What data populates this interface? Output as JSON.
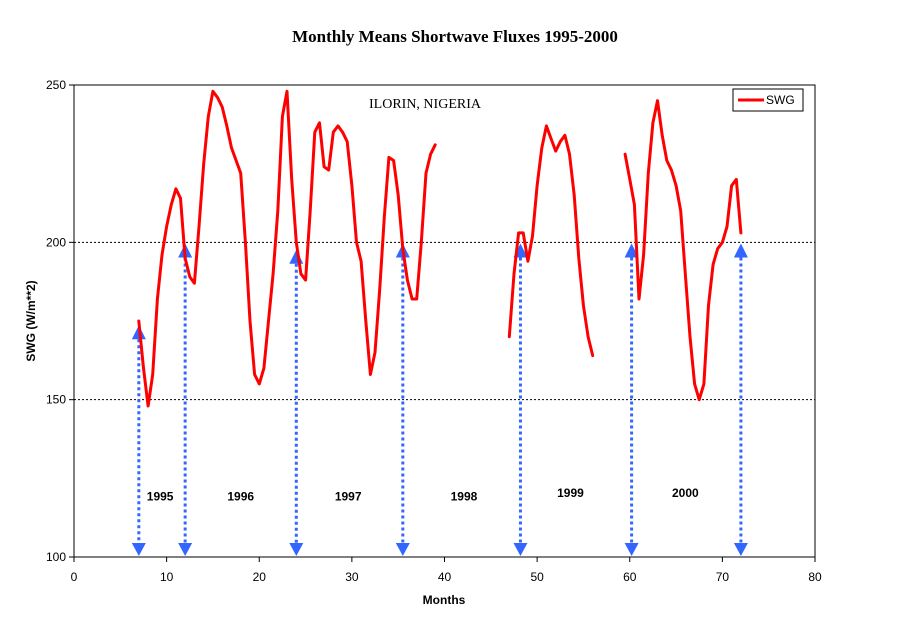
{
  "chart_data": {
    "type": "line",
    "title": "Monthly Means Shortwave Fluxes 1995-2000",
    "annotation": "ILORIN, NIGERIA",
    "xlabel": "Months",
    "ylabel": "SWG (W/m**2)",
    "xlim": [
      0,
      80
    ],
    "ylim": [
      100,
      250
    ],
    "xticks": [
      0,
      10,
      20,
      30,
      40,
      50,
      60,
      70,
      80
    ],
    "yticks": [
      100,
      150,
      200,
      250
    ],
    "gridlines_y": [
      150,
      200
    ],
    "legend": {
      "position": "top-right",
      "entries": [
        "SWG"
      ]
    },
    "colors": {
      "series": "#ff0000",
      "arrows": "#3366ff",
      "grid": "#000000"
    },
    "series": [
      {
        "name": "SWG",
        "segments": [
          [
            [
              7,
              175
            ],
            [
              7.5,
              160
            ],
            [
              8,
              148
            ],
            [
              8.5,
              158
            ],
            [
              9,
              182
            ],
            [
              9.5,
              196
            ],
            [
              10,
              205
            ],
            [
              10.5,
              212
            ],
            [
              11,
              217
            ],
            [
              11.5,
              214
            ],
            [
              12,
              195
            ],
            [
              12.5,
              189
            ],
            [
              13,
              187
            ],
            [
              13.5,
              205
            ],
            [
              14,
              225
            ],
            [
              14.5,
              240
            ],
            [
              15,
              248
            ],
            [
              15.5,
              246
            ],
            [
              16,
              243
            ],
            [
              16.5,
              237
            ],
            [
              17,
              230
            ],
            [
              17.5,
              226
            ],
            [
              18,
              222
            ],
            [
              18.5,
              200
            ],
            [
              19,
              175
            ],
            [
              19.5,
              158
            ],
            [
              20,
              155
            ],
            [
              20.5,
              160
            ],
            [
              21,
              175
            ],
            [
              21.5,
              190
            ],
            [
              22,
              210
            ],
            [
              22.5,
              240
            ],
            [
              23,
              248
            ],
            [
              23.5,
              220
            ],
            [
              24,
              200
            ],
            [
              24.5,
              190
            ],
            [
              25,
              188
            ],
            [
              25.5,
              210
            ],
            [
              26,
              235
            ],
            [
              26.5,
              238
            ],
            [
              27,
              224
            ],
            [
              27.5,
              223
            ],
            [
              28,
              235
            ],
            [
              28.5,
              237
            ],
            [
              29,
              235
            ],
            [
              29.5,
              232
            ],
            [
              30,
              218
            ],
            [
              30.5,
              200
            ],
            [
              31,
              194
            ],
            [
              31.5,
              175
            ],
            [
              32,
              158
            ],
            [
              32.5,
              165
            ],
            [
              33,
              185
            ],
            [
              33.5,
              208
            ],
            [
              34,
              227
            ],
            [
              34.5,
              226
            ],
            [
              35,
              215
            ],
            [
              35.5,
              198
            ],
            [
              36,
              188
            ],
            [
              36.5,
              182
            ],
            [
              37,
              182
            ],
            [
              37.5,
              200
            ],
            [
              38,
              222
            ],
            [
              38.5,
              228
            ],
            [
              39,
              231
            ]
          ],
          [
            [
              47,
              170
            ],
            [
              47.5,
              190
            ],
            [
              48,
              203
            ],
            [
              48.5,
              203
            ],
            [
              49,
              194
            ],
            [
              49.5,
              202
            ],
            [
              50,
              218
            ],
            [
              50.5,
              230
            ],
            [
              51,
              237
            ],
            [
              51.5,
              233
            ],
            [
              52,
              229
            ],
            [
              52.5,
              232
            ],
            [
              53,
              234
            ],
            [
              53.5,
              228
            ],
            [
              54,
              215
            ],
            [
              54.5,
              195
            ],
            [
              55,
              180
            ],
            [
              55.5,
              170
            ],
            [
              56,
              164
            ]
          ],
          [
            [
              59.5,
              228
            ],
            [
              60,
              220
            ],
            [
              60.5,
              212
            ],
            [
              61,
              182
            ],
            [
              61.5,
              196
            ],
            [
              62,
              222
            ],
            [
              62.5,
              238
            ],
            [
              63,
              245
            ],
            [
              63.5,
              234
            ],
            [
              64,
              226
            ],
            [
              64.5,
              223
            ],
            [
              65,
              218
            ],
            [
              65.5,
              210
            ],
            [
              66,
              190
            ],
            [
              66.5,
              170
            ],
            [
              67,
              155
            ],
            [
              67.5,
              150
            ],
            [
              68,
              155
            ],
            [
              68.5,
              180
            ],
            [
              69,
              193
            ],
            [
              69.5,
              198
            ],
            [
              70,
              200
            ],
            [
              70.5,
              205
            ],
            [
              71,
              218
            ],
            [
              71.5,
              220
            ],
            [
              72,
              203
            ]
          ]
        ]
      }
    ],
    "markers": [
      {
        "x": 7,
        "y_top": 173,
        "y_bottom": 100
      },
      {
        "x": 12,
        "y_top": 199,
        "y_bottom": 100
      },
      {
        "x": 24,
        "y_top": 197,
        "y_bottom": 100
      },
      {
        "x": 35.5,
        "y_top": 199,
        "y_bottom": 100
      },
      {
        "x": 48.2,
        "y_top": 199,
        "y_bottom": 100
      },
      {
        "x": 60.2,
        "y_top": 199,
        "y_bottom": 100
      },
      {
        "x": 72,
        "y_top": 199,
        "y_bottom": 100
      }
    ],
    "year_labels": [
      {
        "text": "1995",
        "x": 9.3,
        "y": 118
      },
      {
        "text": "1996",
        "x": 18,
        "y": 118
      },
      {
        "text": "1997",
        "x": 29.6,
        "y": 118
      },
      {
        "text": "1998",
        "x": 42.1,
        "y": 118
      },
      {
        "text": "1999",
        "x": 53.6,
        "y": 119
      },
      {
        "text": "2000",
        "x": 66,
        "y": 119
      }
    ]
  }
}
